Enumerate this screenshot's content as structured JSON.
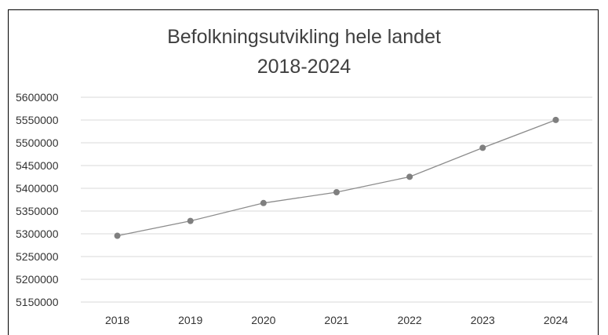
{
  "chart_data": {
    "type": "line",
    "title": [
      "Befolkningsutvikling hele landet",
      "2018-2024"
    ],
    "xlabel": "",
    "ylabel": "",
    "categories": [
      "2018",
      "2019",
      "2020",
      "2021",
      "2022",
      "2023",
      "2024"
    ],
    "series": [
      {
        "values": [
          5295619,
          5328212,
          5367580,
          5391369,
          5425270,
          5488984,
          5550203
        ]
      }
    ],
    "ylim": [
      5150000,
      5600000
    ],
    "yticks": [
      5150000,
      5200000,
      5250000,
      5300000,
      5350000,
      5400000,
      5450000,
      5500000,
      5550000,
      5600000
    ],
    "grid": true,
    "colors": {
      "line": "#8c8c8c",
      "marker": "#7f7f7f",
      "grid": "#d9d9d9",
      "text": "#404040"
    }
  }
}
